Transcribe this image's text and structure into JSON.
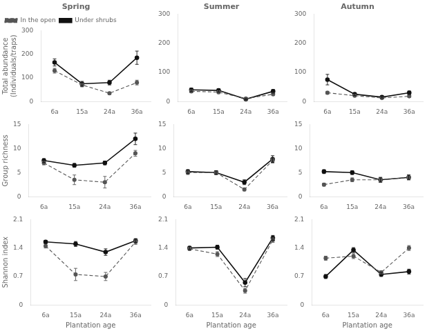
{
  "chart_data": [
    {
      "type": "line",
      "title": "Spring",
      "ylabel": "Total abundance\n(Individuals/traps)",
      "categories": [
        "6a",
        "15a",
        "24a",
        "36a"
      ],
      "series": [
        {
          "name": "In the open",
          "color": "#555555",
          "line_style": "dashed",
          "marker": "circle",
          "values": [
            130,
            70,
            35,
            80
          ],
          "errors": [
            10,
            8,
            5,
            10
          ]
        },
        {
          "name": "Under shrubs",
          "color": "#111111",
          "line_style": "solid",
          "marker": "circle",
          "values": [
            165,
            75,
            80,
            185
          ],
          "errors": [
            15,
            10,
            10,
            28
          ]
        }
      ],
      "ylim": [
        0,
        300
      ],
      "yticks": [
        0,
        100,
        200,
        300
      ],
      "grid": false,
      "legend": "upper left"
    },
    {
      "type": "line",
      "title": "Summer",
      "categories": [
        "6a",
        "15a",
        "24a",
        "36a"
      ],
      "series": [
        {
          "name": "In the open",
          "color": "#555555",
          "line_style": "dashed",
          "marker": "circle",
          "values": [
            35,
            32,
            10,
            25
          ],
          "errors": [
            5,
            5,
            3,
            5
          ]
        },
        {
          "name": "Under shrubs",
          "color": "#111111",
          "line_style": "solid",
          "marker": "circle",
          "values": [
            40,
            38,
            8,
            35
          ],
          "errors": [
            6,
            6,
            2,
            6
          ]
        }
      ],
      "ylim": [
        0,
        300
      ],
      "yticks": [
        0,
        100,
        200,
        300
      ],
      "grid": false
    },
    {
      "type": "line",
      "title": "Autumn",
      "categories": [
        "6a",
        "15a",
        "24a",
        "36a"
      ],
      "series": [
        {
          "name": "In the open",
          "color": "#555555",
          "line_style": "dashed",
          "marker": "circle",
          "values": [
            30,
            20,
            12,
            18
          ],
          "errors": [
            5,
            4,
            3,
            4
          ]
        },
        {
          "name": "Under shrubs",
          "color": "#111111",
          "line_style": "solid",
          "marker": "circle",
          "values": [
            75,
            25,
            15,
            30
          ],
          "errors": [
            18,
            5,
            3,
            6
          ]
        }
      ],
      "ylim": [
        0,
        300
      ],
      "yticks": [
        0,
        100,
        200,
        300
      ],
      "grid": false
    },
    {
      "type": "line",
      "ylabel": "Group richness",
      "categories": [
        "6a",
        "15a",
        "24a",
        "36a"
      ],
      "series": [
        {
          "name": "In the open",
          "color": "#555555",
          "line_style": "dashed",
          "marker": "circle",
          "values": [
            7,
            3.5,
            3,
            9
          ],
          "errors": [
            0.4,
            1.0,
            1.2,
            0.6
          ]
        },
        {
          "name": "Under shrubs",
          "color": "#111111",
          "line_style": "solid",
          "marker": "circle",
          "values": [
            7.5,
            6.5,
            7,
            12
          ],
          "errors": [
            0.4,
            0.4,
            0.4,
            1.2
          ]
        }
      ],
      "ylim": [
        0,
        15
      ],
      "yticks": [
        0,
        5,
        10,
        15
      ],
      "grid": false
    },
    {
      "type": "line",
      "categories": [
        "6a",
        "15a",
        "24a",
        "36a"
      ],
      "series": [
        {
          "name": "In the open",
          "color": "#555555",
          "line_style": "dashed",
          "marker": "circle",
          "values": [
            5,
            5,
            1.5,
            7.5
          ],
          "errors": [
            0.4,
            0.4,
            0.3,
            0.5
          ]
        },
        {
          "name": "Under shrubs",
          "color": "#111111",
          "line_style": "solid",
          "marker": "circle",
          "values": [
            5.2,
            5,
            3,
            7.8
          ],
          "errors": [
            0.4,
            0.4,
            0.5,
            0.7
          ]
        }
      ],
      "ylim": [
        0,
        15
      ],
      "yticks": [
        0,
        5,
        10,
        15
      ],
      "grid": false
    },
    {
      "type": "line",
      "categories": [
        "6a",
        "15a",
        "24a",
        "36a"
      ],
      "series": [
        {
          "name": "In the open",
          "color": "#555555",
          "line_style": "dashed",
          "marker": "circle",
          "values": [
            2.5,
            3.5,
            3.5,
            4
          ],
          "errors": [
            0.3,
            0.4,
            0.5,
            0.5
          ]
        },
        {
          "name": "Under shrubs",
          "color": "#111111",
          "line_style": "solid",
          "marker": "circle",
          "values": [
            5.2,
            5,
            3.5,
            4
          ],
          "errors": [
            0.4,
            0.4,
            0.5,
            0.5
          ]
        }
      ],
      "ylim": [
        0,
        15
      ],
      "yticks": [
        0,
        5,
        10,
        15
      ],
      "grid": false
    },
    {
      "type": "line",
      "ylabel": "Shannon index",
      "xlabel": "Plantation age",
      "categories": [
        "6a",
        "15a",
        "24a",
        "36a"
      ],
      "series": [
        {
          "name": "In the open",
          "color": "#555555",
          "line_style": "dashed",
          "marker": "circle",
          "values": [
            1.45,
            0.75,
            0.7,
            1.55
          ],
          "errors": [
            0.05,
            0.15,
            0.1,
            0.06
          ]
        },
        {
          "name": "Under shrubs",
          "color": "#111111",
          "line_style": "solid",
          "marker": "circle",
          "values": [
            1.55,
            1.5,
            1.3,
            1.58
          ],
          "errors": [
            0.04,
            0.06,
            0.08,
            0.05
          ]
        }
      ],
      "ylim": [
        0,
        2.1
      ],
      "yticks": [
        0,
        0.7,
        1.4,
        2.1
      ],
      "grid": false
    },
    {
      "type": "line",
      "xlabel": "Plantation age",
      "categories": [
        "6a",
        "15a",
        "24a",
        "36a"
      ],
      "series": [
        {
          "name": "In the open",
          "color": "#555555",
          "line_style": "dashed",
          "marker": "circle",
          "values": [
            1.38,
            1.25,
            0.35,
            1.6
          ],
          "errors": [
            0.04,
            0.06,
            0.06,
            0.06
          ]
        },
        {
          "name": "Under shrubs",
          "color": "#111111",
          "line_style": "solid",
          "marker": "circle",
          "values": [
            1.4,
            1.42,
            0.55,
            1.65
          ],
          "errors": [
            0.04,
            0.05,
            0.1,
            0.06
          ]
        }
      ],
      "ylim": [
        0,
        2.1
      ],
      "yticks": [
        0,
        0.7,
        1.4,
        2.1
      ],
      "grid": false
    },
    {
      "type": "line",
      "xlabel": "Plantation age",
      "categories": [
        "6a",
        "15a",
        "24a",
        "36a"
      ],
      "series": [
        {
          "name": "In the open",
          "color": "#555555",
          "line_style": "dashed",
          "marker": "circle",
          "values": [
            1.15,
            1.2,
            0.8,
            1.4
          ],
          "errors": [
            0.05,
            0.06,
            0.04,
            0.06
          ]
        },
        {
          "name": "Under shrubs",
          "color": "#111111",
          "line_style": "solid",
          "marker": "circle",
          "values": [
            0.7,
            1.35,
            0.75,
            0.82
          ],
          "errors": [
            0.05,
            0.06,
            0.05,
            0.06
          ]
        }
      ],
      "ylim": [
        0,
        2.1
      ],
      "yticks": [
        0,
        0.7,
        1.4,
        2.1
      ],
      "grid": false
    }
  ]
}
